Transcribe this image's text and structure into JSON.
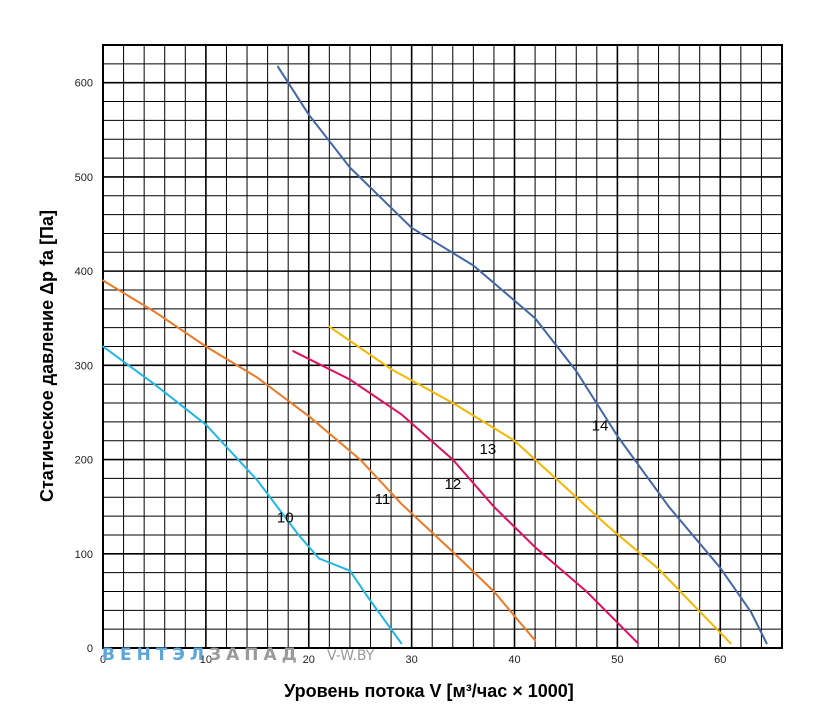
{
  "chart_data": {
    "type": "line",
    "title": "",
    "xlabel": "Уровень потока V [м³/час × 1000]",
    "ylabel": "Статическое давление Δp fa [Па]",
    "xlim": [
      0,
      66
    ],
    "ylim": [
      0,
      640
    ],
    "x_ticks": [
      0,
      10,
      20,
      30,
      40,
      50,
      60
    ],
    "y_ticks": [
      0,
      100,
      200,
      300,
      400,
      500,
      600
    ],
    "grid": true,
    "series": [
      {
        "name": "10",
        "color": "#1fb7e6",
        "label_pos": [
          16.9,
          133
        ],
        "points": [
          [
            0,
            320
          ],
          [
            5,
            280
          ],
          [
            10,
            237
          ],
          [
            15,
            178
          ],
          [
            19,
            120
          ],
          [
            21,
            95
          ],
          [
            24,
            82
          ],
          [
            26,
            50
          ],
          [
            29,
            5
          ]
        ]
      },
      {
        "name": "11",
        "color": "#ec7a27",
        "label_pos": [
          26.4,
          153
        ],
        "points": [
          [
            0,
            390
          ],
          [
            5,
            357
          ],
          [
            10,
            320
          ],
          [
            15,
            287
          ],
          [
            20,
            246
          ],
          [
            25,
            200
          ],
          [
            29,
            153
          ],
          [
            34,
            102
          ],
          [
            38,
            60
          ],
          [
            42,
            8
          ]
        ]
      },
      {
        "name": "12",
        "color": "#e0105f",
        "label_pos": [
          33.2,
          169
        ],
        "points": [
          [
            18.5,
            315
          ],
          [
            24,
            285
          ],
          [
            29,
            248
          ],
          [
            34,
            200
          ],
          [
            38,
            150
          ],
          [
            42,
            107
          ],
          [
            47,
            60
          ],
          [
            52,
            5
          ]
        ]
      },
      {
        "name": "13",
        "color": "#f5b800",
        "label_pos": [
          36.6,
          206
        ],
        "points": [
          [
            22,
            341
          ],
          [
            28,
            296
          ],
          [
            34,
            260
          ],
          [
            40,
            220
          ],
          [
            45,
            170
          ],
          [
            49,
            130
          ],
          [
            54,
            84
          ],
          [
            57,
            50
          ],
          [
            61,
            5
          ]
        ]
      },
      {
        "name": "14",
        "color": "#4266a8",
        "label_pos": [
          47.5,
          231
        ],
        "points": [
          [
            17,
            617
          ],
          [
            20,
            566
          ],
          [
            24,
            510
          ],
          [
            30,
            446
          ],
          [
            36,
            406
          ],
          [
            42,
            350
          ],
          [
            46,
            294
          ],
          [
            50,
            225
          ],
          [
            55,
            150
          ],
          [
            60,
            85
          ],
          [
            63,
            38
          ],
          [
            64.5,
            5
          ]
        ]
      }
    ]
  },
  "watermark": {
    "left_part1": "ВЕНТЭЛ",
    "left_part2": "ЗАПАД",
    "right": "V-W.BY",
    "color_blue": "#5da5d9",
    "color_gray": "#9a9a9a"
  }
}
